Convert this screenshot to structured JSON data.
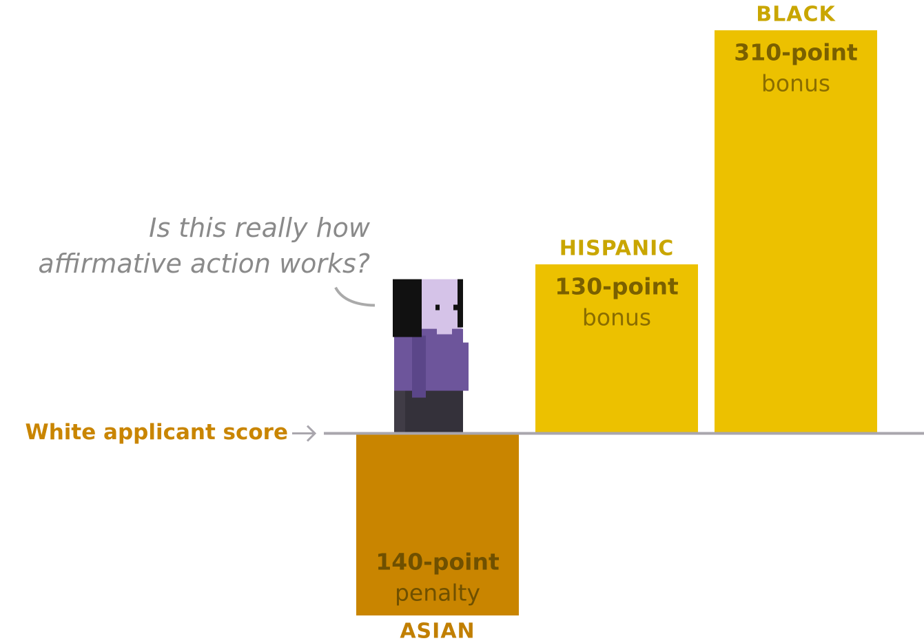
{
  "chart_data": {
    "type": "bar",
    "categories": [
      "ASIAN",
      "HISPANIC",
      "BLACK"
    ],
    "values": [
      -140,
      130,
      310
    ],
    "value_labels": [
      "140-point",
      "130-point",
      "310-point"
    ],
    "value_notes": [
      "penalty",
      "bonus",
      "bonus"
    ],
    "colors": [
      "#c98500",
      "#ecc100",
      "#ecc100"
    ],
    "category_colors": [
      "#c17f00",
      "#c9a600",
      "#c9a600"
    ],
    "ylim": [
      -140,
      310
    ],
    "baseline_label": "White applicant score",
    "question": [
      "Is this really how",
      "affirmative action works?"
    ]
  }
}
